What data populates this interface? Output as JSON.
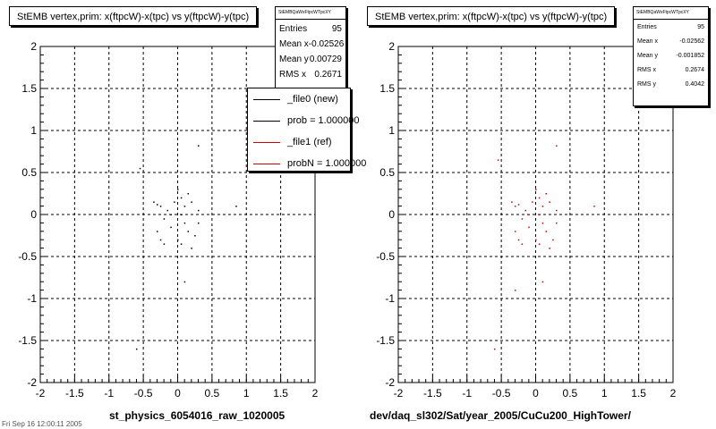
{
  "chart_data": [
    {
      "type": "scatter",
      "title": "StEMB  vertex,prim: x(ftpcW)-x(tpc) vs y(ftpcW)-y(tpc)",
      "xlabel": "st_physics_6054016_raw_1020005",
      "ylabel": "",
      "xlim": [
        -2,
        2
      ],
      "ylim": [
        -2,
        2
      ],
      "xticks": [
        -2,
        -1.5,
        -1,
        -0.5,
        0,
        0.5,
        1,
        1.5,
        2
      ],
      "yticks": [
        -2,
        -1.5,
        -1,
        -0.5,
        0,
        0.5,
        1,
        1.5,
        2
      ],
      "x_tick_labels": [
        "-2",
        "-1.5",
        "-1",
        "-0.5",
        "0",
        "0.5",
        "1",
        "1.5",
        "2"
      ],
      "y_tick_labels": [
        "-2",
        "-1.5",
        "-1",
        "-0.5",
        "0",
        "0.5",
        "1",
        "1.5",
        "2"
      ],
      "grid": true,
      "marker_color": "#000000",
      "points": [
        [
          0.3,
          0.82
        ],
        [
          -0.55,
          0.55
        ],
        [
          -0.35,
          0.15
        ],
        [
          -0.3,
          0.12
        ],
        [
          -0.25,
          0.1
        ],
        [
          -0.15,
          0.05
        ],
        [
          0.0,
          0.3
        ],
        [
          0.05,
          0.2
        ],
        [
          0.1,
          0.1
        ],
        [
          0.15,
          0.25
        ],
        [
          0.2,
          0.15
        ],
        [
          0.05,
          0.0
        ],
        [
          -0.1,
          0.0
        ],
        [
          -0.2,
          -0.05
        ],
        [
          -0.3,
          -0.2
        ],
        [
          -0.25,
          -0.3
        ],
        [
          -0.2,
          -0.35
        ],
        [
          0.1,
          -0.1
        ],
        [
          0.15,
          -0.2
        ],
        [
          0.25,
          -0.25
        ],
        [
          0.3,
          -0.1
        ],
        [
          0.0,
          -0.3
        ],
        [
          0.05,
          -0.35
        ],
        [
          0.2,
          -0.4
        ],
        [
          -0.1,
          -0.15
        ],
        [
          0.1,
          -0.8
        ],
        [
          0.85,
          0.1
        ],
        [
          -0.6,
          -1.6
        ],
        [
          0.3,
          0.05
        ],
        [
          -0.05,
          0.15
        ]
      ],
      "stats": {
        "header": "StEMBQaWxFtpcWTpcXY",
        "entries_label": "Entries",
        "entries": "95",
        "mean_x_label": "Mean x",
        "mean_x": "-0.02526",
        "mean_y_label": "Mean y",
        "mean_y": "0.00729",
        "rms_x_label": "RMS x",
        "rms_x": "0.2671"
      },
      "legend": {
        "items": [
          {
            "label": "_file0 (new)",
            "color": "#000000"
          },
          {
            "label": "prob = 1.000000",
            "color": "#000000"
          },
          {
            "label": "_file1 (ref)",
            "color": "#d00000"
          },
          {
            "label": "probN = 1.000000",
            "color": "#d00000"
          }
        ]
      }
    },
    {
      "type": "scatter",
      "title": "StEMB  vertex,prim: x(ftpcW)-x(tpc) vs y(ftpcW)-y(tpc)",
      "xlabel": "dev/daq_sl302/Sat/year_2005/CuCu200_HighTower/",
      "ylabel": "",
      "xlim": [
        -2,
        2
      ],
      "ylim": [
        -2,
        2
      ],
      "xticks": [
        -2,
        -1.5,
        -1,
        -0.5,
        0,
        0.5,
        1,
        1.5,
        2
      ],
      "yticks": [
        -2,
        -1.5,
        -1,
        -0.5,
        0,
        0.5,
        1,
        1.5,
        2
      ],
      "x_tick_labels": [
        "-2",
        "-1.5",
        "-1",
        "-0.5",
        "0",
        "0.5",
        "1",
        "1.5",
        "2"
      ],
      "y_tick_labels": [
        "-2",
        "-1.5",
        "-1",
        "-0.5",
        "0",
        "0.5",
        "1",
        "1.5",
        "2"
      ],
      "grid": true,
      "marker_color": "#d00000",
      "points": [
        [
          0.3,
          0.82
        ],
        [
          -0.55,
          0.65
        ],
        [
          -0.35,
          0.15
        ],
        [
          -0.3,
          0.1
        ],
        [
          -0.25,
          0.12
        ],
        [
          -0.15,
          0.05
        ],
        [
          0.0,
          0.3
        ],
        [
          0.05,
          0.2
        ],
        [
          0.1,
          0.1
        ],
        [
          0.15,
          0.25
        ],
        [
          0.2,
          0.15
        ],
        [
          0.05,
          0.0
        ],
        [
          -0.1,
          0.0
        ],
        [
          -0.2,
          -0.05
        ],
        [
          -0.3,
          -0.2
        ],
        [
          -0.25,
          -0.3
        ],
        [
          -0.2,
          -0.35
        ],
        [
          0.1,
          -0.1
        ],
        [
          0.15,
          -0.2
        ],
        [
          0.25,
          -0.3
        ],
        [
          0.3,
          -0.1
        ],
        [
          0.0,
          -0.3
        ],
        [
          0.05,
          -0.35
        ],
        [
          0.2,
          -0.4
        ],
        [
          -0.1,
          -0.15
        ],
        [
          0.1,
          -0.8
        ],
        [
          0.85,
          0.1
        ],
        [
          -0.6,
          -1.6
        ],
        [
          -0.3,
          -0.9
        ],
        [
          0.3,
          0.05
        ],
        [
          -0.05,
          0.15
        ]
      ],
      "stats": {
        "header": "StEMBQaWxFtpcWTpcXY",
        "entries_label": "Entries",
        "entries": "95",
        "mean_x_label": "Mean x",
        "mean_x": "-0.02562",
        "mean_y_label": "Mean y",
        "mean_y": "-0.001852",
        "rms_x_label": "RMS x",
        "rms_x": "0.2674",
        "rms_y_label": "RMS y",
        "rms_y": "0.4042"
      }
    }
  ],
  "footer": {
    "text": "Fri Sep 16 12:00:11 2005"
  }
}
